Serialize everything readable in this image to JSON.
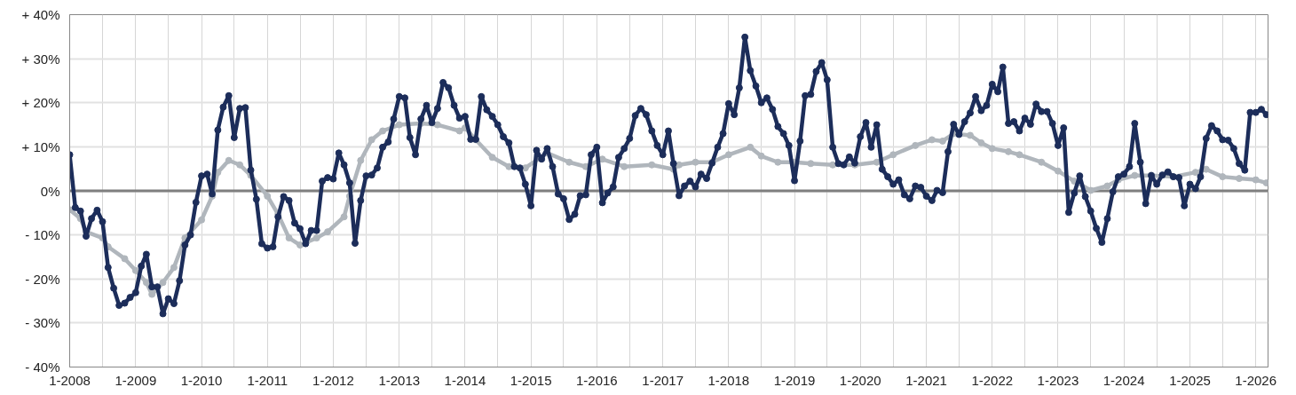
{
  "chart_data": {
    "type": "line",
    "xlim": [
      "2008-01",
      "2026-03-10"
    ],
    "ylim": [
      -40,
      40
    ],
    "xticks": [
      {
        "value": "2008-01",
        "label": "1-2008"
      },
      {
        "value": "2008-07",
        "label": null
      },
      {
        "value": "2009-01",
        "label": "1-2009"
      },
      {
        "value": "2009-07",
        "label": null
      },
      {
        "value": "2010-01",
        "label": "1-2010"
      },
      {
        "value": "2010-07",
        "label": null
      },
      {
        "value": "2011-01",
        "label": "1-2011"
      },
      {
        "value": "2011-07",
        "label": null
      },
      {
        "value": "2012-01",
        "label": "1-2012"
      },
      {
        "value": "2012-07",
        "label": null
      },
      {
        "value": "2013-01",
        "label": "1-2013"
      },
      {
        "value": "2013-07",
        "label": null
      },
      {
        "value": "2014-01",
        "label": "1-2014"
      },
      {
        "value": "2014-07",
        "label": null
      },
      {
        "value": "2015-01",
        "label": "1-2015"
      },
      {
        "value": "2015-07",
        "label": null
      },
      {
        "value": "2016-01",
        "label": "1-2016"
      },
      {
        "value": "2016-07",
        "label": null
      },
      {
        "value": "2017-01",
        "label": "1-2017"
      },
      {
        "value": "2017-07",
        "label": null
      },
      {
        "value": "2018-01",
        "label": "1-2018"
      },
      {
        "value": "2018-07",
        "label": null
      },
      {
        "value": "2019-01",
        "label": "1-2019"
      },
      {
        "value": "2019-07",
        "label": null
      },
      {
        "value": "2020-01",
        "label": "1-2020"
      },
      {
        "value": "2020-07",
        "label": null
      },
      {
        "value": "2021-01",
        "label": "1-2021"
      },
      {
        "value": "2021-07",
        "label": null
      },
      {
        "value": "2022-01",
        "label": "1-2022"
      },
      {
        "value": "2022-07",
        "label": null
      },
      {
        "value": "2023-01",
        "label": "1-2023"
      },
      {
        "value": "2023-07",
        "label": null
      },
      {
        "value": "2024-01",
        "label": "1-2024"
      },
      {
        "value": "2024-07",
        "label": null
      },
      {
        "value": "2025-01",
        "label": "1-2025"
      },
      {
        "value": "2025-07",
        "label": null
      },
      {
        "value": "2026-01",
        "label": "1-2026"
      }
    ],
    "yticks": [
      {
        "value": 40,
        "label": "+ 40%"
      },
      {
        "value": 30,
        "label": "+ 30%"
      },
      {
        "value": 20,
        "label": "+ 20%"
      },
      {
        "value": 10,
        "label": "+ 10%"
      },
      {
        "value": 0,
        "label": "0%"
      },
      {
        "value": -10,
        "label": "- 10%"
      },
      {
        "value": -20,
        "label": "- 20%"
      },
      {
        "value": -30,
        "label": "- 30%"
      },
      {
        "value": -40,
        "label": "- 40%"
      }
    ],
    "grid": true,
    "marker": "circle",
    "line_style": "solid",
    "ref_lines": [
      {
        "axis": "y",
        "value": 0,
        "color": "#7f7f7f"
      }
    ],
    "x": [
      "2008-01",
      "2008-02",
      "2008-03",
      "2008-04",
      "2008-05",
      "2008-06",
      "2008-07",
      "2008-08",
      "2008-09",
      "2008-10",
      "2008-11",
      "2008-12",
      "2009-01",
      "2009-02",
      "2009-03",
      "2009-04",
      "2009-05",
      "2009-06",
      "2009-07",
      "2009-08",
      "2009-09",
      "2009-10",
      "2009-11",
      "2009-12",
      "2010-01",
      "2010-02",
      "2010-03",
      "2010-04",
      "2010-05",
      "2010-06",
      "2010-07",
      "2010-08",
      "2010-09",
      "2010-10",
      "2010-11",
      "2010-12",
      "2011-01",
      "2011-02",
      "2011-03",
      "2011-04",
      "2011-05",
      "2011-06",
      "2011-07",
      "2011-08",
      "2011-09",
      "2011-10",
      "2011-11",
      "2011-12",
      "2012-01",
      "2012-02",
      "2012-03",
      "2012-04",
      "2012-05",
      "2012-06",
      "2012-07",
      "2012-08",
      "2012-09",
      "2012-10",
      "2012-11",
      "2012-12",
      "2013-01",
      "2013-02",
      "2013-03",
      "2013-04",
      "2013-05",
      "2013-06",
      "2013-07",
      "2013-08",
      "2013-09",
      "2013-10",
      "2013-11",
      "2013-12",
      "2014-01",
      "2014-02",
      "2014-03",
      "2014-04",
      "2014-05",
      "2014-06",
      "2014-07",
      "2014-08",
      "2014-09",
      "2014-10",
      "2014-11",
      "2014-12",
      "2015-01",
      "2015-02",
      "2015-03",
      "2015-04",
      "2015-05",
      "2015-06",
      "2015-07",
      "2015-08",
      "2015-09",
      "2015-10",
      "2015-11",
      "2015-12",
      "2016-01",
      "2016-02",
      "2016-03",
      "2016-04",
      "2016-05",
      "2016-06",
      "2016-07",
      "2016-08",
      "2016-09",
      "2016-10",
      "2016-11",
      "2016-12",
      "2017-01",
      "2017-02",
      "2017-03",
      "2017-04",
      "2017-05",
      "2017-06",
      "2017-07",
      "2017-08",
      "2017-09",
      "2017-10",
      "2017-11",
      "2017-12",
      "2018-01",
      "2018-02",
      "2018-03",
      "2018-04",
      "2018-05",
      "2018-06",
      "2018-07",
      "2018-08",
      "2018-09",
      "2018-10",
      "2018-11",
      "2018-12",
      "2019-01",
      "2019-02",
      "2019-03",
      "2019-04",
      "2019-05",
      "2019-06",
      "2019-07",
      "2019-08",
      "2019-09",
      "2019-10",
      "2019-11",
      "2019-12",
      "2020-01",
      "2020-02",
      "2020-03",
      "2020-04",
      "2020-05",
      "2020-06",
      "2020-07",
      "2020-08",
      "2020-09",
      "2020-10",
      "2020-11",
      "2020-12",
      "2021-01",
      "2021-02",
      "2021-03",
      "2021-04",
      "2021-05",
      "2021-06",
      "2021-07",
      "2021-08",
      "2021-09",
      "2021-10",
      "2021-11",
      "2021-12",
      "2022-01",
      "2022-02",
      "2022-03",
      "2022-04",
      "2022-05",
      "2022-06",
      "2022-07",
      "2022-08",
      "2022-09",
      "2022-10",
      "2022-11",
      "2022-12",
      "2023-01",
      "2023-02",
      "2023-03",
      "2023-04",
      "2023-05",
      "2023-06",
      "2023-07",
      "2023-08",
      "2023-09",
      "2023-10",
      "2023-11",
      "2023-12",
      "2024-01",
      "2024-02",
      "2024-03",
      "2024-04",
      "2024-05",
      "2024-06",
      "2024-07",
      "2024-08",
      "2024-09",
      "2024-10",
      "2024-11",
      "2024-12",
      "2025-01",
      "2025-02",
      "2025-03",
      "2025-04",
      "2025-05",
      "2025-06",
      "2025-07",
      "2025-08",
      "2025-09",
      "2025-10",
      "2025-11",
      "2025-12",
      "2026-01",
      "2026-02",
      "2026-03"
    ],
    "series": [
      {
        "color": "#b0b6bc",
        "x": [
          "2008-01",
          "2008-03",
          "2008-04",
          "2008-07",
          "2008-08",
          "2008-11",
          "2009-01",
          "2009-03",
          "2009-04",
          "2009-06",
          "2009-08",
          "2009-10",
          "2010-01",
          "2010-03",
          "2010-04",
          "2010-06",
          "2010-08",
          "2010-10",
          "2011-01",
          "2011-03",
          "2011-05",
          "2011-07",
          "2011-10",
          "2011-12",
          "2012-03",
          "2012-04",
          "2012-06",
          "2012-08",
          "2012-10",
          "2013-01",
          "2013-05",
          "2013-08",
          "2013-12",
          "2014-01",
          "2014-03",
          "2014-06",
          "2014-09",
          "2014-12",
          "2015-04",
          "2015-08",
          "2015-11",
          "2016-02",
          "2016-06",
          "2016-11",
          "2017-03",
          "2017-04",
          "2017-07",
          "2017-10",
          "2018-01",
          "2018-05",
          "2018-07",
          "2018-10",
          "2019-01",
          "2019-04",
          "2019-08",
          "2019-12",
          "2020-04",
          "2020-07",
          "2020-11",
          "2021-02",
          "2021-04",
          "2021-06",
          "2021-09",
          "2021-11",
          "2022-01",
          "2022-04",
          "2022-06",
          "2022-10",
          "2023-01",
          "2023-04",
          "2023-07",
          "2023-10",
          "2023-12",
          "2024-03",
          "2024-06",
          "2024-10",
          "2025-02",
          "2025-04",
          "2025-07",
          "2025-10",
          "2026-01",
          "2026-03"
        ],
        "values": [
          -4.3,
          -6.3,
          -9.3,
          -10.7,
          -12.7,
          -15.4,
          -18.1,
          -20.8,
          -23.5,
          -20.8,
          -17.4,
          -10.7,
          -6.6,
          -1.2,
          4.2,
          6.9,
          5.9,
          3.5,
          -1.2,
          -5.3,
          -10.7,
          -12.3,
          -10.7,
          -9.3,
          -5.9,
          -1.2,
          6.9,
          11.6,
          13.6,
          15.0,
          15.3,
          15.0,
          13.6,
          14.3,
          11.6,
          7.6,
          5.5,
          5.2,
          8.6,
          6.5,
          5.5,
          7.2,
          5.5,
          5.9,
          4.9,
          5.9,
          6.5,
          6.5,
          8.2,
          9.9,
          7.9,
          6.5,
          6.5,
          6.2,
          5.9,
          5.9,
          6.5,
          8.2,
          10.3,
          11.6,
          11.3,
          13.0,
          12.6,
          10.9,
          9.6,
          8.9,
          8.2,
          6.5,
          4.5,
          2.2,
          0.1,
          1.1,
          2.5,
          3.5,
          3.5,
          3.2,
          4.2,
          4.9,
          3.2,
          2.8,
          2.5,
          1.8
        ]
      },
      {
        "color": "#1c2d5a",
        "values": [
          8.2,
          -3.8,
          -4.6,
          -10.3,
          -6.3,
          -4.4,
          -7.0,
          -17.4,
          -22.1,
          -26.0,
          -25.5,
          -24.2,
          -23.1,
          -17.1,
          -14.4,
          -21.8,
          -21.8,
          -27.9,
          -24.5,
          -25.6,
          -20.4,
          -12.3,
          -10.0,
          -2.6,
          3.4,
          3.8,
          -0.7,
          13.8,
          19.0,
          21.6,
          12.1,
          18.7,
          18.9,
          4.7,
          -1.9,
          -12.0,
          -13.0,
          -12.7,
          -5.9,
          -1.3,
          -2.2,
          -7.3,
          -8.6,
          -12.0,
          -9.0,
          -9.0,
          2.2,
          3.0,
          2.7,
          8.6,
          5.9,
          1.8,
          -11.9,
          -2.2,
          3.4,
          3.6,
          5.2,
          9.9,
          11.1,
          16.3,
          21.4,
          21.1,
          12.1,
          8.2,
          16.3,
          19.4,
          15.5,
          18.7,
          24.6,
          23.4,
          19.4,
          16.5,
          16.9,
          11.7,
          11.7,
          21.4,
          18.4,
          16.9,
          15.0,
          12.3,
          10.9,
          5.5,
          5.2,
          1.5,
          -3.4,
          9.2,
          7.2,
          9.6,
          5.5,
          -0.7,
          -1.8,
          -6.5,
          -5.3,
          -1.1,
          -0.9,
          8.2,
          9.9,
          -2.7,
          -0.5,
          0.9,
          7.6,
          9.6,
          11.9,
          17.1,
          18.7,
          17.3,
          13.6,
          10.3,
          8.2,
          13.6,
          6.2,
          -1.1,
          1.1,
          2.2,
          0.9,
          3.8,
          2.8,
          6.3,
          9.9,
          13.0,
          19.8,
          17.3,
          23.4,
          34.9,
          27.3,
          23.8,
          20.0,
          21.1,
          18.5,
          14.6,
          13.0,
          10.3,
          2.3,
          11.3,
          21.6,
          21.9,
          27.1,
          29.1,
          25.2,
          9.9,
          6.2,
          5.9,
          7.7,
          6.3,
          12.3,
          15.5,
          9.9,
          15.0,
          4.9,
          3.2,
          1.5,
          2.5,
          -0.9,
          -1.8,
          1.1,
          0.8,
          -1.2,
          -2.2,
          0.1,
          -0.4,
          8.9,
          15.1,
          12.8,
          15.7,
          17.7,
          21.4,
          18.2,
          19.4,
          24.2,
          22.5,
          28.1,
          15.3,
          15.7,
          13.6,
          16.5,
          15.1,
          19.7,
          18.0,
          18.0,
          15.3,
          10.3,
          14.3,
          -4.9,
          -0.5,
          3.4,
          -1.3,
          -4.6,
          -8.5,
          -11.7,
          -6.3,
          -0.2,
          3.2,
          3.8,
          5.5,
          15.3,
          6.5,
          -2.9,
          3.5,
          1.5,
          3.6,
          4.3,
          3.2,
          3.0,
          -3.4,
          1.5,
          0.5,
          3.2,
          11.9,
          14.8,
          13.6,
          11.6,
          11.5,
          9.6,
          6.2,
          4.7,
          17.8,
          17.8,
          18.5,
          17.3
        ]
      }
    ]
  }
}
